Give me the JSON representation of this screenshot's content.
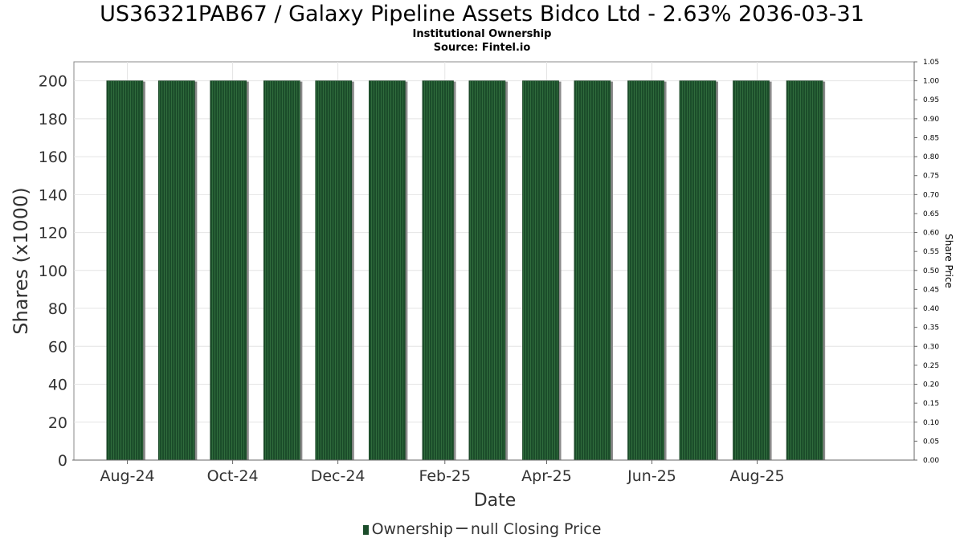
{
  "chart_data": {
    "type": "bar",
    "title": "US36321PAB67 / Galaxy Pipeline Assets Bidco Ltd - 2.63% 2036-03-31",
    "subtitle": "Institutional Ownership",
    "source": "Source: Fintel.io",
    "xlabel": "Date",
    "ylabel": "Shares (x1000)",
    "y2label": "Share Price",
    "ylim": [
      0,
      210
    ],
    "y2lim": [
      0,
      1.05
    ],
    "yticks": [
      0,
      20,
      40,
      60,
      80,
      100,
      120,
      140,
      160,
      180,
      200
    ],
    "y2ticks": [
      "0.00",
      "0.05",
      "0.10",
      "0.15",
      "0.20",
      "0.25",
      "0.30",
      "0.35",
      "0.40",
      "0.45",
      "0.50",
      "0.55",
      "0.60",
      "0.65",
      "0.70",
      "0.75",
      "0.80",
      "0.85",
      "0.90",
      "0.95",
      "1.00",
      "1.05"
    ],
    "x_start": "2024-07-01",
    "x_end": "2025-10-31",
    "xticks": [
      {
        "date": "2024-08-01",
        "label": "Aug-24"
      },
      {
        "date": "2024-10-01",
        "label": "Oct-24"
      },
      {
        "date": "2024-12-01",
        "label": "Dec-24"
      },
      {
        "date": "2025-02-01",
        "label": "Feb-25"
      },
      {
        "date": "2025-04-01",
        "label": "Apr-25"
      },
      {
        "date": "2025-06-01",
        "label": "Jun-25"
      },
      {
        "date": "2025-08-01",
        "label": "Aug-25"
      }
    ],
    "bars": [
      {
        "start": "2024-07-20",
        "end": "2024-08-10",
        "value": 200
      },
      {
        "start": "2024-08-19",
        "end": "2024-09-09",
        "value": 200
      },
      {
        "start": "2024-09-18",
        "end": "2024-10-09",
        "value": 200
      },
      {
        "start": "2024-10-19",
        "end": "2024-11-09",
        "value": 200
      },
      {
        "start": "2024-11-18",
        "end": "2024-12-09",
        "value": 200
      },
      {
        "start": "2024-12-19",
        "end": "2025-01-09",
        "value": 200
      },
      {
        "start": "2025-01-19",
        "end": "2025-02-06",
        "value": 200
      },
      {
        "start": "2025-02-15",
        "end": "2025-03-08",
        "value": 200
      },
      {
        "start": "2025-03-18",
        "end": "2025-04-08",
        "value": 200
      },
      {
        "start": "2025-04-17",
        "end": "2025-05-08",
        "value": 200
      },
      {
        "start": "2025-05-18",
        "end": "2025-06-08",
        "value": 200
      },
      {
        "start": "2025-06-17",
        "end": "2025-07-08",
        "value": 200
      },
      {
        "start": "2025-07-18",
        "end": "2025-08-08",
        "value": 200
      },
      {
        "start": "2025-08-18",
        "end": "2025-09-08",
        "value": 200
      }
    ],
    "series": [
      {
        "name": "Ownership",
        "color": "#1b4d2a"
      },
      {
        "name": "null Closing Price",
        "color": "#444444"
      }
    ],
    "grid": true,
    "legend_position": "bottom-center"
  }
}
